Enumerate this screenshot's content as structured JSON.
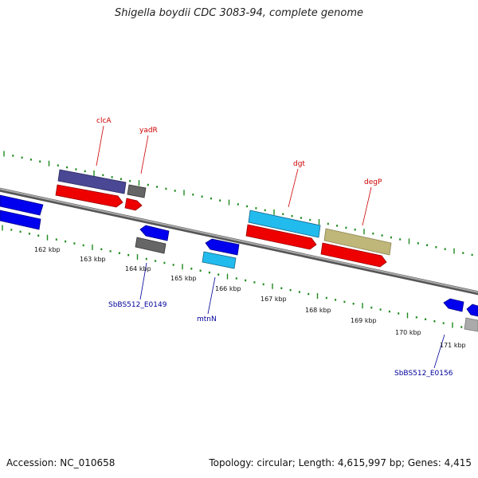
{
  "title": "Shigella boydii CDC 3083-94, complete genome",
  "footer": {
    "accession": "Accession: NC_010658",
    "summary": "Topology: circular; Length: 4,615,997 bp; Genes: 4,415"
  },
  "colors": {
    "backbone": "#8c8c8c",
    "tick": "#1e8a1e",
    "label_forward": "#cc0000",
    "label_reverse": "#000099",
    "gene_red": "#ee0000",
    "gene_blue": "#0000ee",
    "gene_cyan": "#22bbee",
    "gene_purple": "#4a4894",
    "gene_olive": "#bfb77a",
    "gene_gray": "#666666",
    "gene_lightgray": "#aaaaaa"
  },
  "kbp_labels": [
    "162 kbp",
    "163 kbp",
    "164 kbp",
    "165 kbp",
    "166 kbp",
    "167 kbp",
    "168 kbp",
    "169 kbp",
    "170 kbp",
    "171 kbp"
  ],
  "gene_labels": {
    "clcA": "clcA",
    "yadR": "yadR",
    "dgt": "dgt",
    "degP": "degP",
    "e0149": "SbBS512_E0149",
    "mtnN": "mtnN",
    "e0156": "SbBS512_E0156"
  }
}
